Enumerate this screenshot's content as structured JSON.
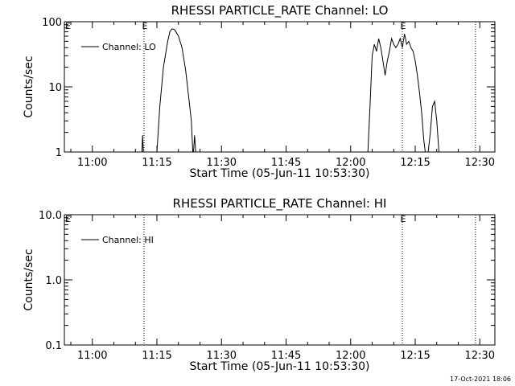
{
  "footer_date": "17-Oct-2021 18:06",
  "chart_data": [
    {
      "type": "line",
      "title": "RHESSI PARTICLE_RATE Channel: LO",
      "xlabel": "Start Time (05-Jun-11 10:53:30)",
      "ylabel": "Counts/sec",
      "yscale": "log",
      "ylim": [
        1,
        100
      ],
      "y_ticks": [
        {
          "v": 1,
          "label": "1"
        },
        {
          "v": 10,
          "label": "10"
        },
        {
          "v": 100,
          "label": "100"
        }
      ],
      "xlim": [
        "10:53:30",
        "12:33:30"
      ],
      "x_ticks": [
        "11:00",
        "11:15",
        "11:30",
        "11:45",
        "12:00",
        "12:15",
        "12:30"
      ],
      "legend": "Channel: LO",
      "event_markers": [
        {
          "time": "11:12:00",
          "label": "E"
        },
        {
          "time": "12:12:00",
          "label": "E"
        },
        {
          "time": "12:29:00",
          "label": ""
        }
      ],
      "series": [
        {
          "name": "Channel: LO",
          "segments": [
            [
              [
                "11:11:30",
                1
              ],
              [
                "11:11:40",
                1.8
              ],
              [
                "11:11:50",
                1
              ]
            ],
            [
              [
                "11:15:00",
                1
              ],
              [
                "11:15:40",
                5
              ],
              [
                "11:16:30",
                20
              ],
              [
                "11:17:30",
                50
              ],
              [
                "11:18:00",
                70
              ],
              [
                "11:18:30",
                78
              ],
              [
                "11:19:10",
                75
              ],
              [
                "11:20:00",
                60
              ],
              [
                "11:20:50",
                40
              ],
              [
                "11:21:40",
                18
              ],
              [
                "11:22:30",
                6
              ],
              [
                "11:23:00",
                3
              ],
              [
                "11:23:20",
                1
              ]
            ],
            [
              [
                "11:23:30",
                1
              ],
              [
                "11:23:45",
                1.8
              ],
              [
                "11:24:00",
                1
              ]
            ],
            [
              [
                "12:04:00",
                1
              ],
              [
                "12:04:30",
                5
              ],
              [
                "12:05:00",
                30
              ],
              [
                "12:05:30",
                45
              ],
              [
                "12:06:00",
                35
              ],
              [
                "12:06:30",
                55
              ],
              [
                "12:07:00",
                40
              ],
              [
                "12:07:30",
                25
              ],
              [
                "12:08:00",
                15
              ],
              [
                "12:08:30",
                25
              ],
              [
                "12:09:00",
                35
              ],
              [
                "12:09:30",
                55
              ],
              [
                "12:10:00",
                45
              ],
              [
                "12:10:30",
                40
              ],
              [
                "12:11:00",
                45
              ],
              [
                "12:11:30",
                55
              ],
              [
                "12:12:00",
                40
              ],
              [
                "12:12:30",
                65
              ],
              [
                "12:13:00",
                45
              ],
              [
                "12:13:30",
                50
              ],
              [
                "12:14:00",
                40
              ],
              [
                "12:14:30",
                35
              ],
              [
                "12:15:00",
                25
              ],
              [
                "12:15:30",
                15
              ],
              [
                "12:16:00",
                8
              ],
              [
                "12:16:30",
                4
              ],
              [
                "12:17:00",
                1.5
              ],
              [
                "12:17:20",
                1
              ]
            ],
            [
              [
                "12:18:00",
                1
              ],
              [
                "12:18:30",
                2
              ],
              [
                "12:19:00",
                5
              ],
              [
                "12:19:30",
                6
              ],
              [
                "12:20:00",
                3
              ],
              [
                "12:20:30",
                1
              ]
            ]
          ]
        }
      ]
    },
    {
      "type": "line",
      "title": "RHESSI PARTICLE_RATE Channel: HI",
      "xlabel": "Start Time (05-Jun-11 10:53:30)",
      "ylabel": "Counts/sec",
      "yscale": "log",
      "ylim": [
        0.1,
        10
      ],
      "y_ticks": [
        {
          "v": 0.1,
          "label": "0.1"
        },
        {
          "v": 1,
          "label": "1.0"
        },
        {
          "v": 10,
          "label": "10.0"
        }
      ],
      "xlim": [
        "10:53:30",
        "12:33:30"
      ],
      "x_ticks": [
        "11:00",
        "11:15",
        "11:30",
        "11:45",
        "12:00",
        "12:15",
        "12:30"
      ],
      "legend": "Channel: HI",
      "event_markers": [
        {
          "time": "11:12:00",
          "label": ""
        },
        {
          "time": "12:12:00",
          "label": "E"
        },
        {
          "time": "12:29:00",
          "label": ""
        }
      ],
      "series": [
        {
          "name": "Channel: HI",
          "segments": []
        }
      ]
    }
  ]
}
